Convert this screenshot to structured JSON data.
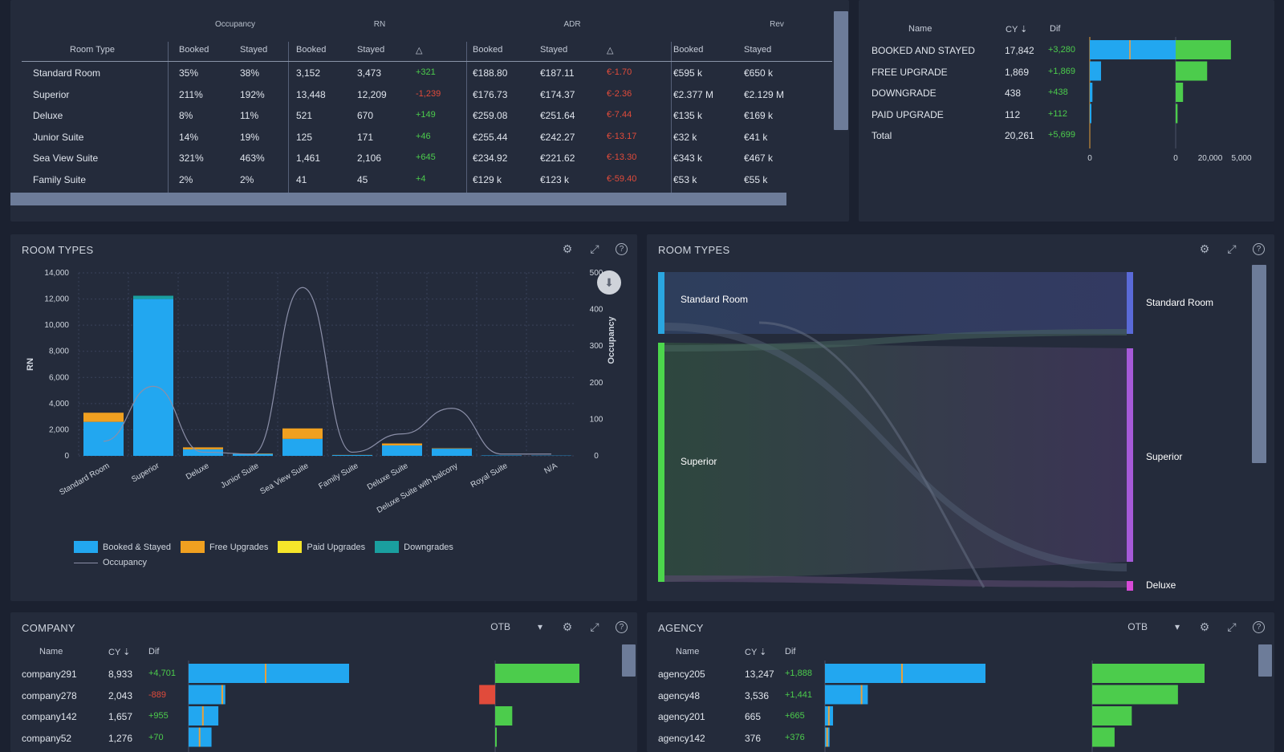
{
  "room_table": {
    "groups": [
      "Occupancy",
      "RN",
      "ADR",
      "Rev"
    ],
    "headers": [
      "Room Type",
      "Booked",
      "Stayed",
      "Booked",
      "Stayed",
      "△",
      "Booked",
      "Stayed",
      "△",
      "Booked",
      "Stayed"
    ],
    "rows": [
      {
        "name": "Standard Room",
        "occ_b": "35%",
        "occ_s": "38%",
        "rn_b": "3,152",
        "rn_s": "3,473",
        "rn_d": "+321",
        "adr_b": "€188.80",
        "adr_s": "€187.11",
        "adr_d": "€-1.70",
        "rev_b": "€595 k",
        "rev_s": "€650 k"
      },
      {
        "name": "Superior",
        "occ_b": "211%",
        "occ_s": "192%",
        "rn_b": "13,448",
        "rn_s": "12,209",
        "rn_d": "-1,239",
        "adr_b": "€176.73",
        "adr_s": "€174.37",
        "adr_d": "€-2.36",
        "rev_b": "€2.377 M",
        "rev_s": "€2.129 M"
      },
      {
        "name": "Deluxe",
        "occ_b": "8%",
        "occ_s": "11%",
        "rn_b": "521",
        "rn_s": "670",
        "rn_d": "+149",
        "adr_b": "€259.08",
        "adr_s": "€251.64",
        "adr_d": "€-7.44",
        "rev_b": "€135 k",
        "rev_s": "€169 k"
      },
      {
        "name": "Junior Suite",
        "occ_b": "14%",
        "occ_s": "19%",
        "rn_b": "125",
        "rn_s": "171",
        "rn_d": "+46",
        "adr_b": "€255.44",
        "adr_s": "€242.27",
        "adr_d": "€-13.17",
        "rev_b": "€32 k",
        "rev_s": "€41 k"
      },
      {
        "name": "Sea View Suite",
        "occ_b": "321%",
        "occ_s": "463%",
        "rn_b": "1,461",
        "rn_s": "2,106",
        "rn_d": "+645",
        "adr_b": "€234.92",
        "adr_s": "€221.62",
        "adr_d": "€-13.30",
        "rev_b": "€343 k",
        "rev_s": "€467 k"
      },
      {
        "name": "Family Suite",
        "occ_b": "2%",
        "occ_s": "2%",
        "rn_b": "41",
        "rn_s": "45",
        "rn_d": "+4",
        "adr_b": "€129 k",
        "adr_s": "€123 k",
        "adr_d": "€-59.40",
        "rev_b": "€53 k",
        "rev_s": "€55 k"
      }
    ]
  },
  "upgrade_table": {
    "headers": [
      "Name",
      "CY",
      "Dif"
    ],
    "rows": [
      {
        "name": "BOOKED AND STAYED",
        "cy": "17,842",
        "dif": "+3,280"
      },
      {
        "name": "FREE UPGRADE",
        "cy": "1,869",
        "dif": "+1,869"
      },
      {
        "name": "DOWNGRADE",
        "cy": "438",
        "dif": "+438"
      },
      {
        "name": "PAID UPGRADE",
        "cy": "112",
        "dif": "+112"
      },
      {
        "name": "Total",
        "cy": "20,261",
        "dif": "+5,699"
      }
    ],
    "cy_values": [
      17842,
      1869,
      438,
      112
    ],
    "dif_values": [
      3280,
      1869,
      438,
      112
    ],
    "axis1": [
      "0",
      "20,000"
    ],
    "axis2": [
      "0",
      "5,000"
    ]
  },
  "room_chart": {
    "title": "ROOM TYPES",
    "chart_data": {
      "type": "bar",
      "categories": [
        "Standard Room",
        "Superior",
        "Deluxe",
        "Junior Suite",
        "Sea View Suite",
        "Family Suite",
        "Deluxe Suite",
        "Deluxe Suite with balcony",
        "Royal Suite",
        "N/A"
      ],
      "series": [
        {
          "name": "Booked & Stayed",
          "color": "#22a7f0",
          "values": [
            2600,
            12000,
            500,
            150,
            1300,
            60,
            800,
            550,
            30,
            20
          ]
        },
        {
          "name": "Free Upgrades",
          "color": "#f0a020",
          "values": [
            700,
            0,
            150,
            30,
            800,
            10,
            150,
            30,
            0,
            0
          ]
        },
        {
          "name": "Paid Upgrades",
          "color": "#f5e52a",
          "values": [
            0,
            0,
            0,
            0,
            0,
            0,
            0,
            0,
            0,
            0
          ]
        },
        {
          "name": "Downgrades",
          "color": "#1a9f9f",
          "values": [
            0,
            250,
            0,
            0,
            0,
            0,
            0,
            0,
            0,
            0
          ]
        }
      ],
      "line": {
        "name": "Occupancy",
        "values": [
          40,
          190,
          10,
          5,
          460,
          10,
          60,
          130,
          5,
          5
        ]
      },
      "ylabel": "RN",
      "y2label": "Occupancy",
      "ylim": [
        0,
        14000
      ],
      "y2lim": [
        0,
        500
      ],
      "yticks": [
        "14,000",
        "12,000",
        "10,000",
        "8,000",
        "6,000",
        "4,000",
        "2,000",
        "0"
      ],
      "y2ticks": [
        "500",
        "400",
        "300",
        "200",
        "100",
        "0"
      ]
    }
  },
  "sankey": {
    "title": "ROOM TYPES",
    "left": [
      "Standard Room",
      "Superior"
    ],
    "right": [
      "Standard Room",
      "Superior",
      "Deluxe"
    ]
  },
  "company": {
    "title": "COMPANY",
    "filter": "OTB",
    "headers": [
      "Name",
      "CY",
      "Dif"
    ],
    "rows": [
      {
        "name": "company291",
        "cy": "8,933",
        "dif": "+4,701"
      },
      {
        "name": "company278",
        "cy": "2,043",
        "dif": "-889"
      },
      {
        "name": "company142",
        "cy": "1,657",
        "dif": "+955"
      },
      {
        "name": "company52",
        "cy": "1,276",
        "dif": "+70"
      }
    ],
    "cy_values": [
      8933,
      2043,
      1657,
      1276
    ],
    "dif_values": [
      4701,
      -889,
      955,
      70
    ]
  },
  "agency": {
    "title": "AGENCY",
    "filter": "OTB",
    "headers": [
      "Name",
      "CY",
      "Dif"
    ],
    "rows": [
      {
        "name": "agency205",
        "cy": "13,247",
        "dif": "+1,888"
      },
      {
        "name": "agency48",
        "cy": "3,536",
        "dif": "+1,441"
      },
      {
        "name": "agency201",
        "cy": "665",
        "dif": "+665"
      },
      {
        "name": "agency142",
        "cy": "376",
        "dif": "+376"
      }
    ],
    "cy_values": [
      13247,
      3536,
      665,
      376
    ],
    "dif_values": [
      1888,
      1441,
      665,
      376
    ]
  }
}
